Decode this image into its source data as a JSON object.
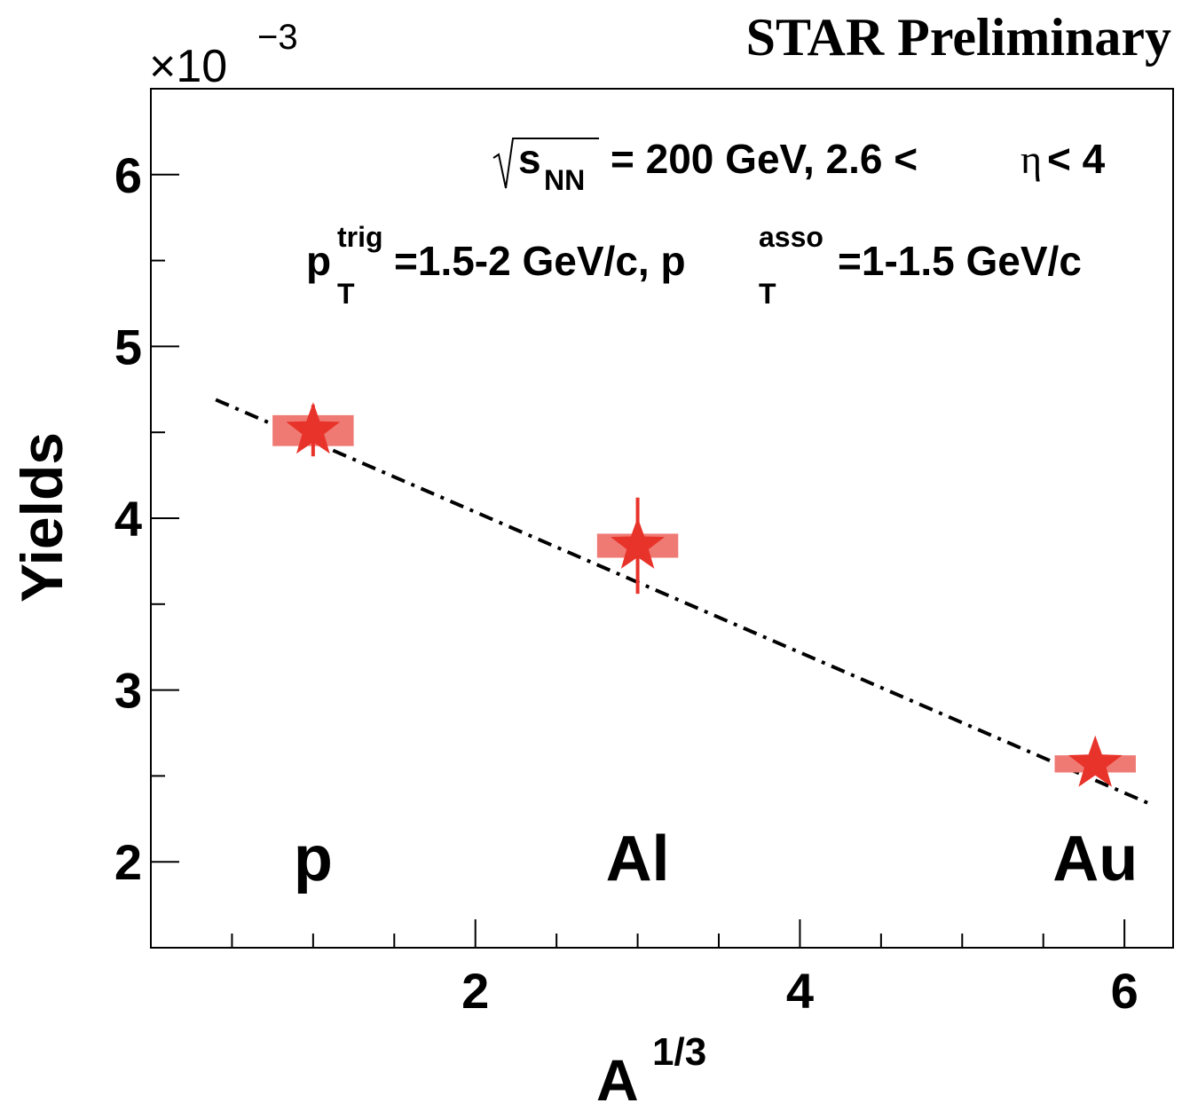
{
  "header": {
    "title": "STAR Preliminary",
    "y_multiplier": "×10",
    "y_multiplier_exp": "−3"
  },
  "annotations": {
    "energy_sqrt": "s",
    "energy_sub": "NN",
    "energy_rest": "= 200 GeV, 2.6 <",
    "eta": "η",
    "eta_rest": "< 4",
    "ptrig_p": "p",
    "ptrig_sub": "T",
    "ptrig_sup": "trig",
    "ptrig_rest": "=1.5-2 GeV/c, p",
    "passo_sub": "T",
    "passo_sup": "asso",
    "passo_rest": "=1-1.5 GeV/c"
  },
  "chart_data": {
    "type": "scatter",
    "xlabel": "A",
    "xlabel_sup": "1/3",
    "ylabel": "Yields",
    "xlim": [
      0.0,
      6.3
    ],
    "ylim": [
      1.5,
      6.5
    ],
    "y_scale_factor": 0.001,
    "xticks": [
      2,
      4,
      6
    ],
    "yticks": [
      2,
      3,
      4,
      5,
      6
    ],
    "points": [
      {
        "label": "p",
        "x": 1.0,
        "y": 4.51,
        "stat_err": 0.15,
        "sys_err": 0.09,
        "sys_halfwidth": 0.25
      },
      {
        "label": "Al",
        "x": 3.0,
        "y": 3.84,
        "stat_err": 0.28,
        "sys_err": 0.07,
        "sys_halfwidth": 0.25
      },
      {
        "label": "Au",
        "x": 5.82,
        "y": 2.57,
        "stat_err": 0.05,
        "sys_err": 0.05,
        "sys_halfwidth": 0.25
      }
    ],
    "fit": {
      "x0": 0.4,
      "y0": 4.69,
      "x1": 6.15,
      "y1": 2.34,
      "style": "dash-dot"
    },
    "colors": {
      "marker": "#e8332a",
      "sys_box": "#ef7a74",
      "fit": "#000000",
      "frame": "#000000"
    }
  }
}
